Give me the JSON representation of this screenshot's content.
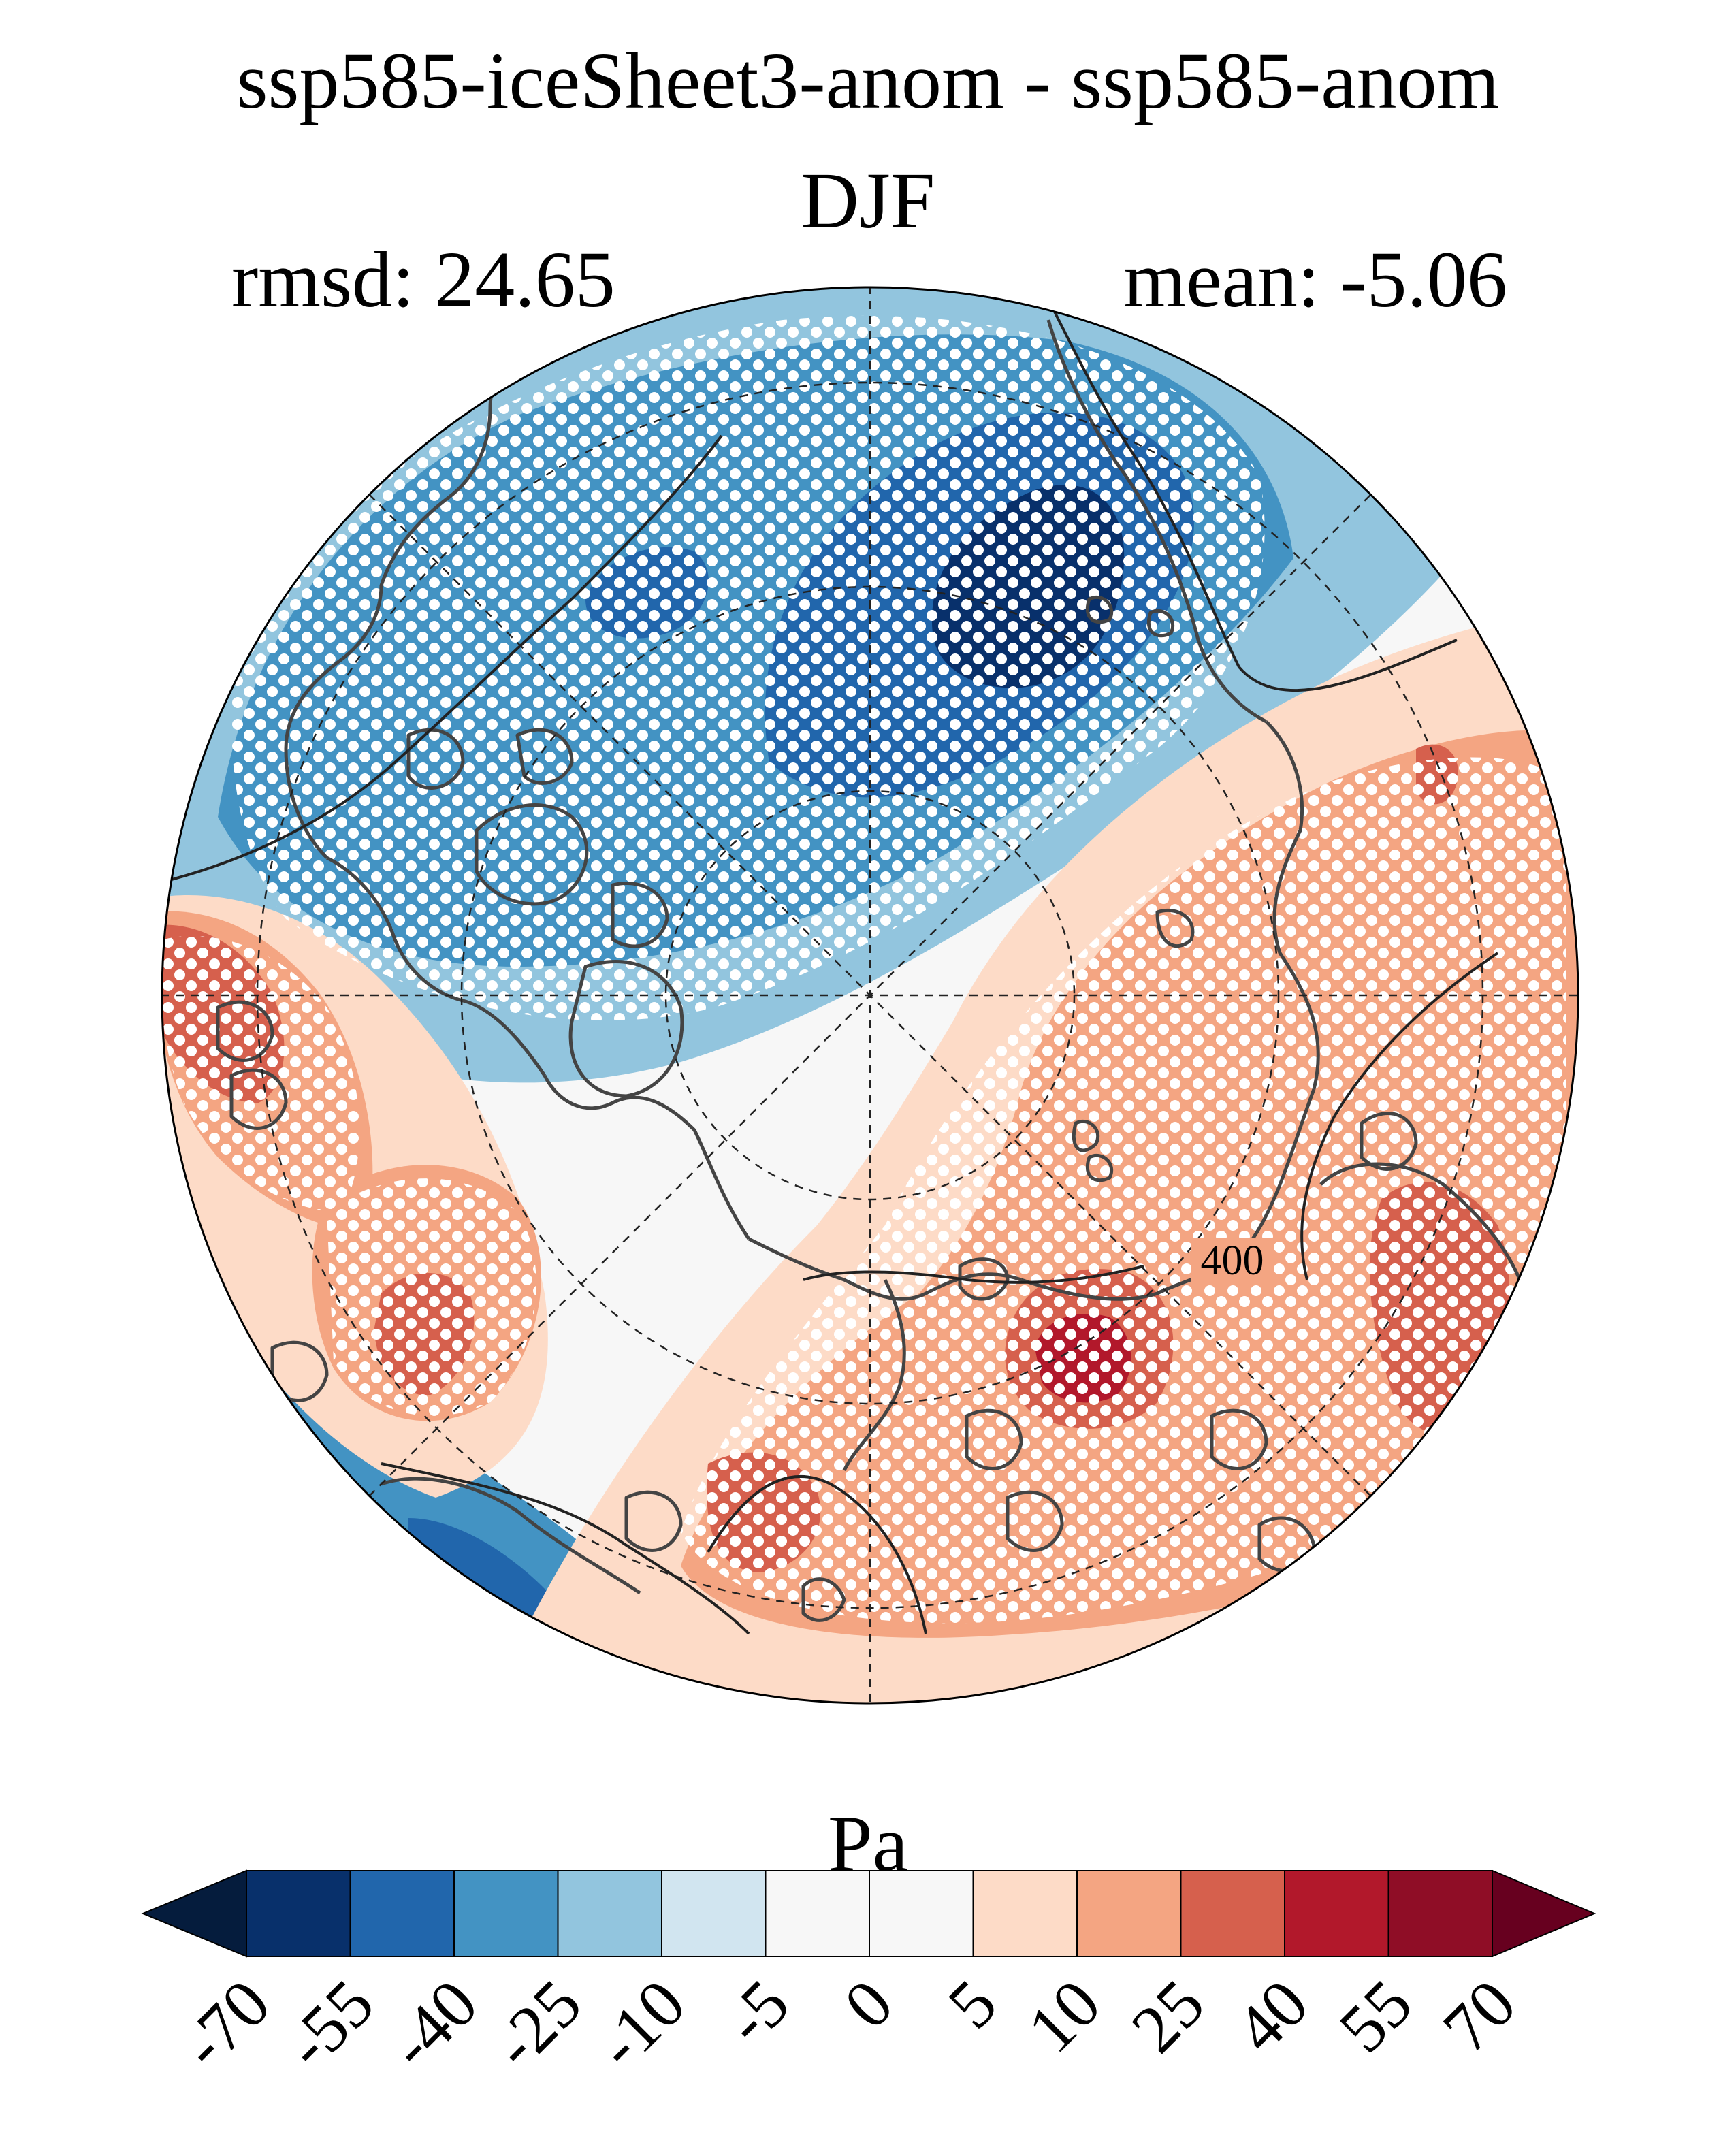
{
  "title": "ssp585-iceSheet3-anom - ssp585-anom",
  "subtitle": "DJF",
  "stats": {
    "rmsd_label": "rmsd: 24.65",
    "mean_label": "mean: -5.06"
  },
  "map": {
    "projection": "north polar stereographic",
    "contour_label": "400",
    "stippling": "white dots mark significant regions"
  },
  "colorbar": {
    "units": "Pa",
    "tick_labels": [
      "-70",
      "-55",
      "-40",
      "-25",
      "-10",
      "-5",
      "0",
      "5",
      "10",
      "25",
      "40",
      "55",
      "70"
    ],
    "colors": [
      "#08306b",
      "#2166ac",
      "#4393c3",
      "#92c5de",
      "#d1e5f0",
      "#f7f7f7",
      "#f7f7f7",
      "#fddbc7",
      "#f4a582",
      "#d6604d",
      "#b2182b",
      "#8f0d26"
    ],
    "under_color": "#051c3d",
    "over_color": "#67001f"
  }
}
